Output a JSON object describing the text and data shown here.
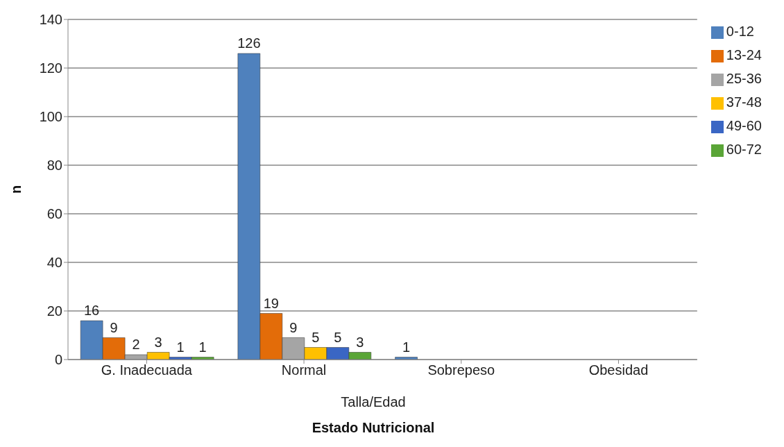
{
  "chart_data": {
    "type": "bar",
    "xlabel": "Estado Nutricional",
    "ylabel": "n",
    "annotations": [
      "Talla/Edad"
    ],
    "categories": [
      "G. Inadecuada",
      "Normal",
      "Sobrepeso",
      "Obesidad"
    ],
    "series": [
      {
        "name": "0-12",
        "color": "#4f81bd",
        "values": [
          16,
          126,
          1,
          0
        ],
        "value_labels": [
          "16",
          "126",
          "1",
          null
        ]
      },
      {
        "name": "13-24",
        "color": "#e36c09",
        "values": [
          9,
          19,
          0,
          0
        ],
        "value_labels": [
          "9",
          "19",
          null,
          null
        ]
      },
      {
        "name": "25-36",
        "color": "#a5a5a5",
        "values": [
          2,
          9,
          0,
          0
        ],
        "value_labels": [
          "2",
          "9",
          null,
          null
        ]
      },
      {
        "name": "37-48",
        "color": "#ffc000",
        "values": [
          3,
          5,
          0,
          0
        ],
        "value_labels": [
          "3",
          "5",
          null,
          null
        ]
      },
      {
        "name": "49-60",
        "color": "#3a66c4",
        "values": [
          1,
          5,
          0,
          0
        ],
        "value_labels": [
          "1",
          "5",
          null,
          null
        ]
      },
      {
        "name": "60-72",
        "color": "#5aa537",
        "values": [
          1,
          3,
          0,
          0
        ],
        "value_labels": [
          "1",
          "3",
          null,
          null
        ]
      }
    ],
    "ylim": [
      0,
      140
    ],
    "yticks": [
      0,
      20,
      40,
      60,
      80,
      100,
      120,
      140
    ],
    "grid": "y",
    "legend": "right"
  }
}
